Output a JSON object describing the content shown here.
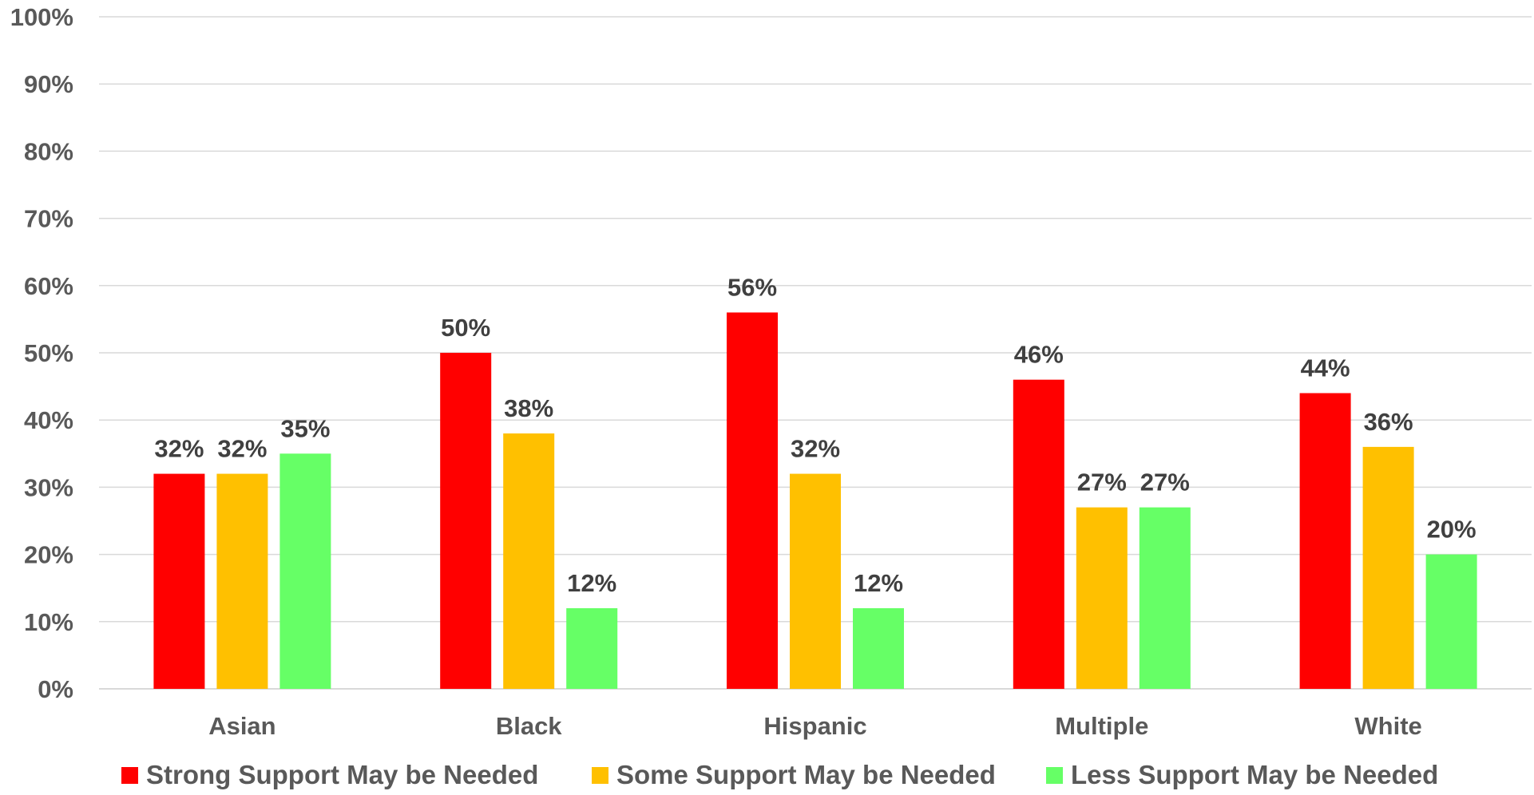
{
  "chart_data": {
    "type": "bar",
    "categories": [
      "Asian",
      "Black",
      "Hispanic",
      "Multiple",
      "White"
    ],
    "series": [
      {
        "name": "Strong Support May be Needed",
        "color": "#ff0000",
        "values": [
          32,
          50,
          56,
          46,
          44
        ],
        "labels": [
          "32%",
          "50%",
          "56%",
          "46%",
          "44%"
        ]
      },
      {
        "name": "Some Support May be Needed",
        "color": "#ffc000",
        "values": [
          32,
          38,
          32,
          27,
          36
        ],
        "labels": [
          "32%",
          "38%",
          "32%",
          "27%",
          "36%"
        ]
      },
      {
        "name": "Less Support May be Needed",
        "color": "#66ff66",
        "values": [
          35,
          12,
          12,
          27,
          20
        ],
        "labels": [
          "35%",
          "12%",
          "12%",
          "27%",
          "20%"
        ]
      }
    ],
    "yticks": [
      "0%",
      "10%",
      "20%",
      "30%",
      "40%",
      "50%",
      "60%",
      "70%",
      "80%",
      "90%",
      "100%"
    ],
    "ylim": [
      0,
      100
    ],
    "grid": true,
    "legend_position": "bottom",
    "title": "",
    "xlabel": "",
    "ylabel": ""
  }
}
